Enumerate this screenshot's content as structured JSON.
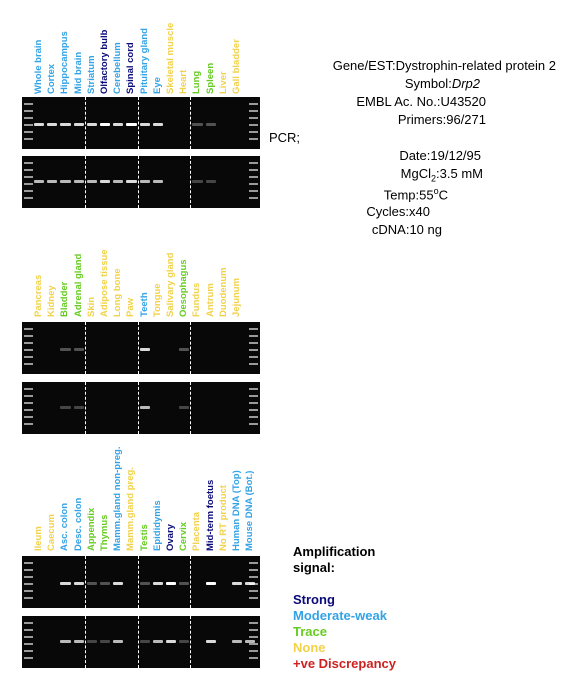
{
  "colors": {
    "strong": "#0a0a7a",
    "moderate": "#33a3e6",
    "trace": "#66cc22",
    "none": "#f2d24a",
    "discrepancy": "#cc2222"
  },
  "panels": [
    {
      "lanes": [
        {
          "label": "Whole brain",
          "level": "moderate"
        },
        {
          "label": "Cortex",
          "level": "moderate"
        },
        {
          "label": "Hippocampus",
          "level": "moderate"
        },
        {
          "label": "Mid brain",
          "level": "moderate"
        },
        {
          "label": "Striatum",
          "level": "moderate"
        },
        {
          "label": "Olfactory bulb",
          "level": "strong"
        },
        {
          "label": "Cerebellum",
          "level": "moderate"
        },
        {
          "label": "Spinal cord",
          "level": "strong"
        },
        {
          "label": "Pituitary gland",
          "level": "moderate"
        },
        {
          "label": "Eye",
          "level": "moderate"
        },
        {
          "label": "Skeletal muscle",
          "level": "none"
        },
        {
          "label": "Heart",
          "level": "none"
        },
        {
          "label": "Lung",
          "level": "trace"
        },
        {
          "label": "Spleen",
          "level": "trace"
        },
        {
          "label": "Liver",
          "level": "none"
        },
        {
          "label": "Gall bladder",
          "level": "none"
        }
      ]
    },
    {
      "lanes": [
        {
          "label": "Pancreas",
          "level": "none"
        },
        {
          "label": "Kidney",
          "level": "none"
        },
        {
          "label": "Bladder",
          "level": "trace"
        },
        {
          "label": "Adrenal gland",
          "level": "trace"
        },
        {
          "label": "Skin",
          "level": "none"
        },
        {
          "label": "Adipose tissue",
          "level": "none"
        },
        {
          "label": "Long bone",
          "level": "none"
        },
        {
          "label": "Paw",
          "level": "none"
        },
        {
          "label": "Teeth",
          "level": "moderate"
        },
        {
          "label": "Tongue",
          "level": "none"
        },
        {
          "label": "Salivary gland",
          "level": "none"
        },
        {
          "label": "Oesophagus",
          "level": "trace"
        },
        {
          "label": "Fundus",
          "level": "none"
        },
        {
          "label": "Antrum",
          "level": "none"
        },
        {
          "label": "Duodenum",
          "level": "none"
        },
        {
          "label": "Jejunum",
          "level": "none"
        }
      ]
    },
    {
      "lanes": [
        {
          "label": "Ileum",
          "level": "none"
        },
        {
          "label": "Caecum",
          "level": "none"
        },
        {
          "label": "Asc. colon",
          "level": "moderate"
        },
        {
          "label": "Desc. colon",
          "level": "moderate"
        },
        {
          "label": "Appendix",
          "level": "trace"
        },
        {
          "label": "Thymus",
          "level": "trace"
        },
        {
          "label": "Mamm.gland non-preg.",
          "level": "moderate"
        },
        {
          "label": "Mamm.gland preg.",
          "level": "none"
        },
        {
          "label": "Testis",
          "level": "trace"
        },
        {
          "label": "Epididymis",
          "level": "moderate"
        },
        {
          "label": "Ovary",
          "level": "strong"
        },
        {
          "label": "Cervix",
          "level": "trace"
        },
        {
          "label": "Placenta",
          "level": "none"
        },
        {
          "label": "Mid-term foetus",
          "level": "strong"
        },
        {
          "label": "No RT product",
          "level": "none"
        },
        {
          "label": "Human DNA (Top)",
          "level": "moderate"
        },
        {
          "label": "Mouse DNA (Bot.)",
          "level": "moderate"
        }
      ]
    }
  ],
  "info": {
    "gene_label": "Gene/EST:",
    "gene_value": "Dystrophin-related protein 2",
    "symbol_label": "Symbol:",
    "symbol_value": "Drp2",
    "embl_label": "EMBL Ac. No.:",
    "embl_value": "U43520",
    "primers_label": "Primers:",
    "primers_value": "96/271",
    "pcr_label": "PCR;",
    "date_label": "Date:",
    "date_value": "19/12/95",
    "mgcl_label": "MgCl",
    "mgcl_sub": "2",
    "mgcl_value": ":3.5 mM",
    "temp_label": "Temp:",
    "temp_value": "55",
    "temp_sup": "o",
    "temp_unit": "C",
    "cycles_label": "Cycles:",
    "cycles_value": "x40",
    "cdna_label": "cDNA:",
    "cdna_value": "10 ng"
  },
  "legend": {
    "title_line1": "Amplification",
    "title_line2": "signal:",
    "strong": "Strong",
    "moderate": "Moderate-weak",
    "trace": "Trace",
    "none": "None",
    "discrepancy": "+ve Discrepancy"
  }
}
